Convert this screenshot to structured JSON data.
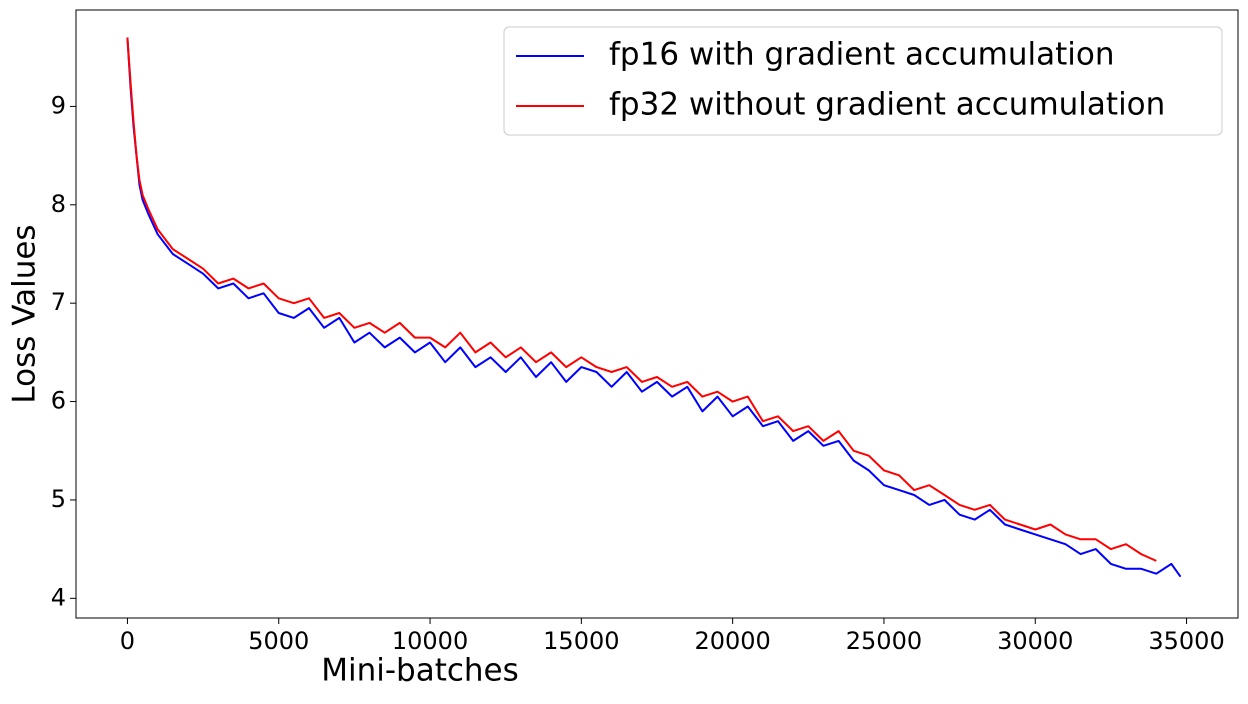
{
  "chart_data": {
    "type": "line",
    "xlabel": "Mini-batches",
    "ylabel": "Loss Values",
    "x": [
      0,
      100,
      200,
      300,
      400,
      500,
      700,
      1000,
      1500,
      2000,
      2500,
      3000,
      3500,
      4000,
      4500,
      5000,
      5500,
      6000,
      6500,
      7000,
      7500,
      8000,
      8500,
      9000,
      9500,
      10000,
      10500,
      11000,
      11500,
      12000,
      12500,
      13000,
      13500,
      14000,
      14500,
      15000,
      15500,
      16000,
      16500,
      17000,
      17500,
      18000,
      18500,
      19000,
      19500,
      20000,
      20500,
      21000,
      21500,
      22000,
      22500,
      23000,
      23500,
      24000,
      24500,
      25000,
      25500,
      26000,
      26500,
      27000,
      27500,
      28000,
      28500,
      29000,
      29500,
      30000,
      30500,
      31000,
      31500,
      32000,
      32500,
      33000,
      33500,
      34000,
      34500,
      34800
    ],
    "series": [
      {
        "name": "fp16 with gradient accumulation",
        "color": "#0000ff",
        "values": [
          9.7,
          9.2,
          8.8,
          8.5,
          8.2,
          8.05,
          7.9,
          7.7,
          7.5,
          7.4,
          7.3,
          7.15,
          7.2,
          7.05,
          7.1,
          6.9,
          6.85,
          6.95,
          6.75,
          6.85,
          6.6,
          6.7,
          6.55,
          6.65,
          6.5,
          6.6,
          6.4,
          6.55,
          6.35,
          6.45,
          6.3,
          6.45,
          6.25,
          6.4,
          6.2,
          6.35,
          6.3,
          6.15,
          6.3,
          6.1,
          6.2,
          6.05,
          6.15,
          5.9,
          6.05,
          5.85,
          5.95,
          5.75,
          5.8,
          5.6,
          5.7,
          5.55,
          5.6,
          5.4,
          5.3,
          5.15,
          5.1,
          5.05,
          4.95,
          5.0,
          4.85,
          4.8,
          4.9,
          4.75,
          4.7,
          4.65,
          4.6,
          4.55,
          4.45,
          4.5,
          4.35,
          4.3,
          4.3,
          4.25,
          4.35,
          4.22
        ]
      },
      {
        "name": "fp32 without gradient accumulation",
        "color": "#ff0000",
        "values": [
          9.7,
          9.25,
          8.85,
          8.5,
          8.25,
          8.1,
          7.95,
          7.75,
          7.55,
          7.45,
          7.35,
          7.2,
          7.25,
          7.15,
          7.2,
          7.05,
          7.0,
          7.05,
          6.85,
          6.9,
          6.75,
          6.8,
          6.7,
          6.8,
          6.65,
          6.65,
          6.55,
          6.7,
          6.5,
          6.6,
          6.45,
          6.55,
          6.4,
          6.5,
          6.35,
          6.45,
          6.35,
          6.3,
          6.35,
          6.2,
          6.25,
          6.15,
          6.2,
          6.05,
          6.1,
          6.0,
          6.05,
          5.8,
          5.85,
          5.7,
          5.75,
          5.6,
          5.7,
          5.5,
          5.45,
          5.3,
          5.25,
          5.1,
          5.15,
          5.05,
          4.95,
          4.9,
          4.95,
          4.8,
          4.75,
          4.7,
          4.75,
          4.65,
          4.6,
          4.6,
          4.5,
          4.55,
          4.45,
          4.38,
          null,
          null
        ]
      }
    ],
    "xlim": [
      -1700,
      36700
    ],
    "xticks": [
      0,
      5000,
      10000,
      15000,
      20000,
      25000,
      30000,
      35000
    ],
    "ylim": [
      3.8,
      9.98
    ],
    "yticks": [
      4,
      5,
      6,
      7,
      8,
      9
    ],
    "legend": "upper right"
  }
}
